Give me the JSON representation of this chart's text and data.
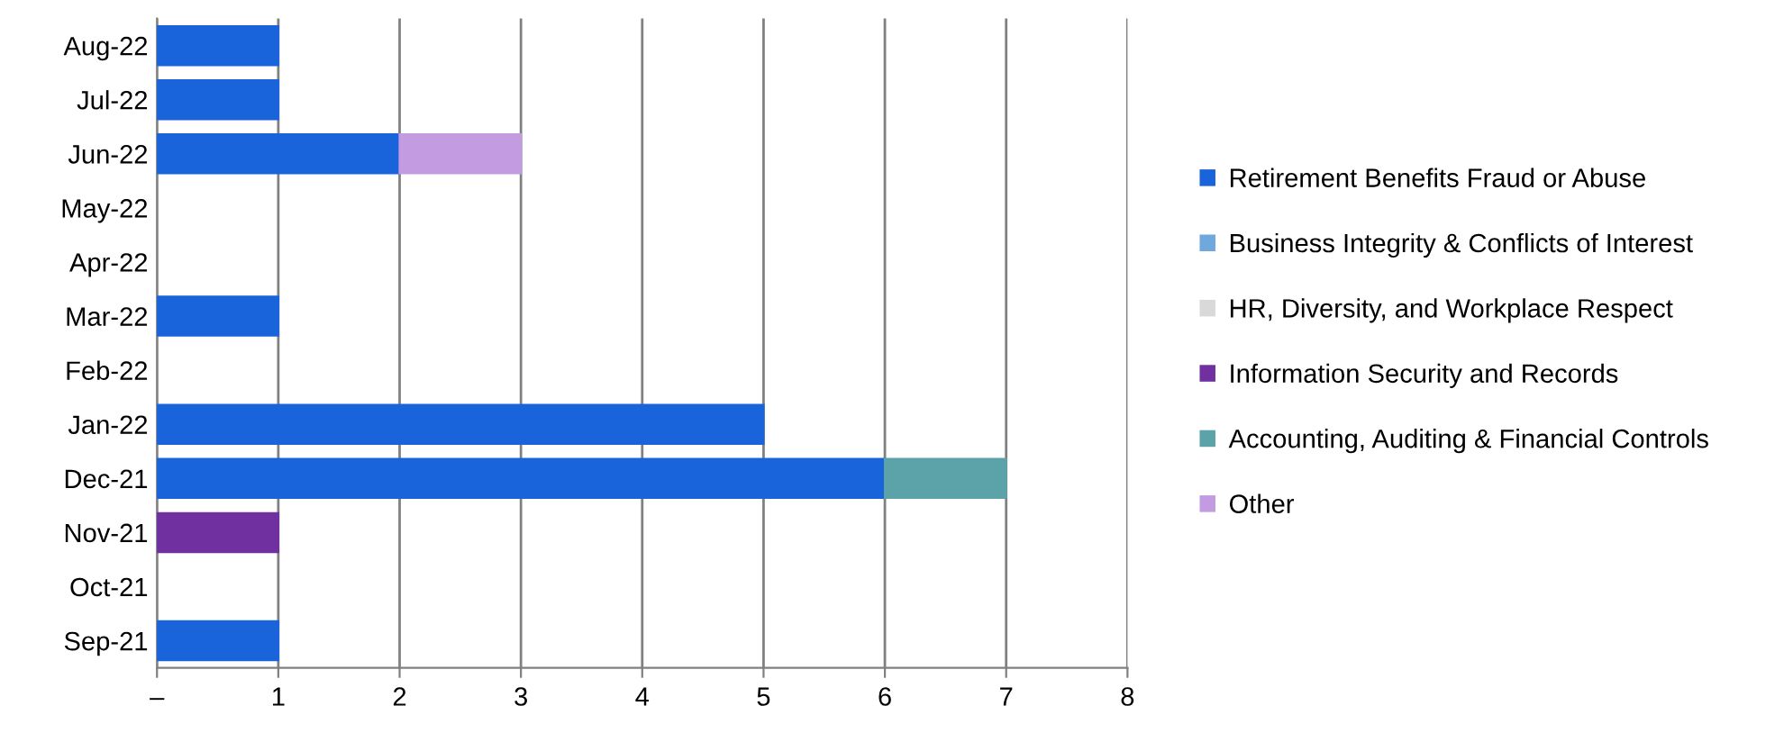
{
  "chart_data": {
    "type": "bar",
    "orientation": "horizontal",
    "stacked": true,
    "categories": [
      "Aug-22",
      "Jul-22",
      "Jun-22",
      "May-22",
      "Apr-22",
      "Mar-22",
      "Feb-22",
      "Jan-22",
      "Dec-21",
      "Nov-21",
      "Oct-21",
      "Sep-21"
    ],
    "series": [
      {
        "name": "Retirement Benefits Fraud or Abuse",
        "color": "#1a64db",
        "values": [
          1,
          1,
          2,
          null,
          null,
          1,
          null,
          5,
          6,
          null,
          null,
          1
        ]
      },
      {
        "name": "Business Integrity & Conflicts of Interest",
        "color": "#6fa8dc",
        "values": [
          null,
          null,
          null,
          null,
          null,
          null,
          null,
          null,
          null,
          null,
          null,
          null
        ]
      },
      {
        "name": "HR, Diversity, and Workplace Respect",
        "color": "#d9d9d9",
        "values": [
          null,
          null,
          null,
          null,
          null,
          null,
          null,
          null,
          null,
          null,
          null,
          null
        ]
      },
      {
        "name": "Information Security and Records",
        "color": "#7030a0",
        "values": [
          null,
          null,
          null,
          null,
          null,
          null,
          null,
          null,
          null,
          1,
          null,
          null
        ]
      },
      {
        "name": "Accounting, Auditing & Financial Controls",
        "color": "#5ba3a8",
        "values": [
          null,
          null,
          null,
          null,
          null,
          null,
          null,
          null,
          1,
          null,
          null,
          null
        ]
      },
      {
        "name": "Other",
        "color": "#c39be0",
        "values": [
          null,
          null,
          1,
          null,
          null,
          null,
          null,
          null,
          null,
          null,
          null,
          null
        ]
      }
    ],
    "xlim": [
      0,
      8
    ],
    "xticks": [
      {
        "value": 0,
        "label": "–"
      },
      1,
      2,
      3,
      4,
      5,
      6,
      7,
      8
    ],
    "grid": "x",
    "legend": "right"
  }
}
